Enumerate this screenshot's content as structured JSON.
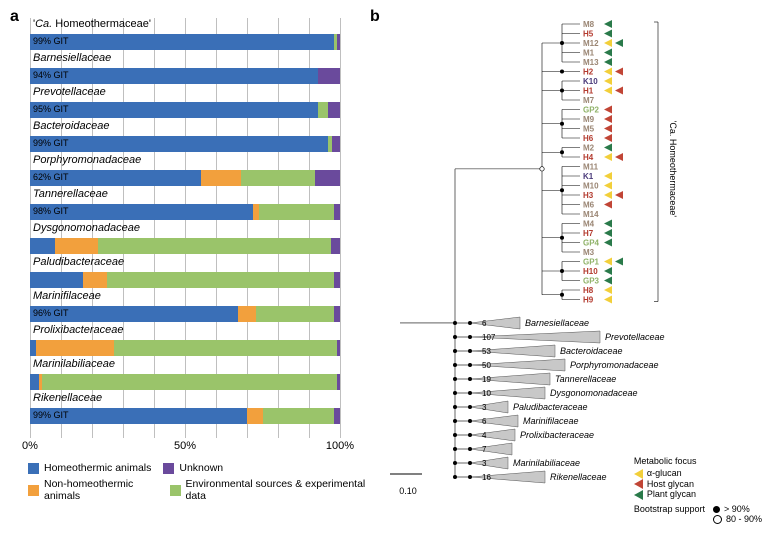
{
  "panelA": {
    "label": "a",
    "xticks": [
      "0%",
      "50%",
      "100%"
    ],
    "grid_positions_pct": [
      0,
      10,
      20,
      30,
      40,
      50,
      60,
      70,
      80,
      90,
      100
    ],
    "families": [
      {
        "name": "'Ca. Homeothermaceae'",
        "git": "99% GIT",
        "segs": [
          {
            "k": "homeo",
            "v": 98
          },
          {
            "k": "env",
            "v": 1
          },
          {
            "k": "unk",
            "v": 1
          }
        ],
        "quoted": true
      },
      {
        "name": "Barnesiellaceae",
        "git": "94% GIT",
        "segs": [
          {
            "k": "homeo",
            "v": 93
          },
          {
            "k": "unk",
            "v": 7
          }
        ]
      },
      {
        "name": "Prevotellaceae",
        "git": "95% GIT",
        "segs": [
          {
            "k": "homeo",
            "v": 93
          },
          {
            "k": "env",
            "v": 3
          },
          {
            "k": "unk",
            "v": 4
          }
        ]
      },
      {
        "name": "Bacteroidaceae",
        "git": "99% GIT",
        "segs": [
          {
            "k": "homeo",
            "v": 96
          },
          {
            "k": "env",
            "v": 1.5
          },
          {
            "k": "unk",
            "v": 2.5
          }
        ]
      },
      {
        "name": "Porphyromonadaceae",
        "git": "62% GIT",
        "segs": [
          {
            "k": "homeo",
            "v": 55
          },
          {
            "k": "nonhomeo",
            "v": 13
          },
          {
            "k": "env",
            "v": 24
          },
          {
            "k": "unk",
            "v": 8
          }
        ]
      },
      {
        "name": "Tannerellaceae",
        "git": "98% GIT",
        "segs": [
          {
            "k": "homeo",
            "v": 72
          },
          {
            "k": "nonhomeo",
            "v": 2
          },
          {
            "k": "env",
            "v": 24
          },
          {
            "k": "unk",
            "v": 2
          }
        ]
      },
      {
        "name": "Dysgonomonadaceae",
        "git": "",
        "segs": [
          {
            "k": "homeo",
            "v": 8
          },
          {
            "k": "nonhomeo",
            "v": 14
          },
          {
            "k": "env",
            "v": 75
          },
          {
            "k": "unk",
            "v": 3
          }
        ]
      },
      {
        "name": "Paludibacteraceae",
        "git": "",
        "segs": [
          {
            "k": "homeo",
            "v": 17
          },
          {
            "k": "nonhomeo",
            "v": 8
          },
          {
            "k": "env",
            "v": 73
          },
          {
            "k": "unk",
            "v": 2
          }
        ]
      },
      {
        "name": "Marinifilaceae",
        "git": "96% GIT",
        "segs": [
          {
            "k": "homeo",
            "v": 67
          },
          {
            "k": "nonhomeo",
            "v": 6
          },
          {
            "k": "env",
            "v": 25
          },
          {
            "k": "unk",
            "v": 2
          }
        ]
      },
      {
        "name": "Prolixibacteraceae",
        "git": "",
        "segs": [
          {
            "k": "homeo",
            "v": 2
          },
          {
            "k": "nonhomeo",
            "v": 25
          },
          {
            "k": "env",
            "v": 72
          },
          {
            "k": "unk",
            "v": 1
          }
        ]
      },
      {
        "name": "Marinilabiliaceae",
        "git": "",
        "segs": [
          {
            "k": "homeo",
            "v": 3
          },
          {
            "k": "nonhomeo",
            "v": 1
          },
          {
            "k": "env",
            "v": 95
          },
          {
            "k": "unk",
            "v": 1
          }
        ]
      },
      {
        "name": "Rikenellaceae",
        "git": "99% GIT",
        "segs": [
          {
            "k": "homeo",
            "v": 70
          },
          {
            "k": "nonhomeo",
            "v": 5
          },
          {
            "k": "env",
            "v": 23
          },
          {
            "k": "unk",
            "v": 2
          }
        ]
      }
    ],
    "colors": {
      "homeo": "#3a6fb7",
      "nonhomeo": "#f2a03d",
      "env": "#9ac46a",
      "unk": "#6a4a9c"
    },
    "legend": [
      {
        "key": "homeo",
        "label": "Homeothermic animals"
      },
      {
        "key": "unk",
        "label": "Unknown"
      },
      {
        "key": "nonhomeo",
        "label": "Non-homeothermic animals"
      },
      {
        "key": "env",
        "label": "Environmental sources & experimental data"
      }
    ]
  },
  "panelB": {
    "label": "b",
    "clade_label": "'Ca. Homeothermaceae'",
    "scale": "0.10",
    "mag_colors": {
      "M": "#9a8573",
      "H": "#b33a2e",
      "K": "#4a3a7a",
      "GP": "#8fb267"
    },
    "glycan_colors": {
      "alpha": "#f2cf3a",
      "host": "#c14536",
      "plant": "#2a7a4a"
    },
    "mags": [
      {
        "id": "M8",
        "glycans": [
          "plant"
        ]
      },
      {
        "id": "H5",
        "glycans": [
          "plant"
        ]
      },
      {
        "id": "M12",
        "glycans": [
          "alpha",
          "plant"
        ]
      },
      {
        "id": "M1",
        "glycans": [
          "plant"
        ]
      },
      {
        "id": "M13",
        "glycans": [
          "plant"
        ]
      },
      {
        "id": "H2",
        "glycans": [
          "alpha",
          "host"
        ]
      },
      {
        "id": "K10",
        "glycans": [
          "alpha"
        ]
      },
      {
        "id": "H1",
        "glycans": [
          "alpha",
          "host"
        ]
      },
      {
        "id": "M7",
        "glycans": []
      },
      {
        "id": "GP2",
        "glycans": [
          "host"
        ]
      },
      {
        "id": "M9",
        "glycans": [
          "host"
        ]
      },
      {
        "id": "M5",
        "glycans": [
          "host"
        ]
      },
      {
        "id": "H6",
        "glycans": [
          "host"
        ]
      },
      {
        "id": "M2",
        "glycans": [
          "plant"
        ]
      },
      {
        "id": "H4",
        "glycans": [
          "alpha",
          "host"
        ]
      },
      {
        "id": "M11",
        "glycans": []
      },
      {
        "id": "K1",
        "glycans": [
          "alpha"
        ]
      },
      {
        "id": "M10",
        "glycans": [
          "alpha"
        ]
      },
      {
        "id": "H3",
        "glycans": [
          "alpha",
          "host"
        ]
      },
      {
        "id": "M6",
        "glycans": [
          "host"
        ]
      },
      {
        "id": "M14",
        "glycans": []
      },
      {
        "id": "M4",
        "glycans": [
          "plant"
        ]
      },
      {
        "id": "H7",
        "glycans": [
          "plant"
        ]
      },
      {
        "id": "GP4",
        "glycans": [
          "plant"
        ]
      },
      {
        "id": "M3",
        "glycans": []
      },
      {
        "id": "GP1",
        "glycans": [
          "alpha",
          "plant"
        ]
      },
      {
        "id": "H10",
        "glycans": [
          "plant"
        ]
      },
      {
        "id": "GP3",
        "glycans": [
          "plant"
        ]
      },
      {
        "id": "H8",
        "glycans": [
          "alpha"
        ]
      },
      {
        "id": "H9",
        "glycans": [
          "alpha"
        ]
      }
    ],
    "collapsed": [
      {
        "label": "Barnesiellaceae",
        "n": 6,
        "width": 50
      },
      {
        "label": "Prevotellaceae",
        "n": 107,
        "width": 130
      },
      {
        "label": "Bacteroidaceae",
        "n": 53,
        "width": 85
      },
      {
        "label": "Porphyromonadaceae",
        "n": 50,
        "width": 95
      },
      {
        "label": "Tannerellaceae",
        "n": 19,
        "width": 80
      },
      {
        "label": "Dysgonomonadaceae",
        "n": 10,
        "width": 75
      },
      {
        "label": "Paludibacteraceae",
        "n": 3,
        "width": 38
      },
      {
        "label": "Marinifilaceae",
        "n": 6,
        "width": 48
      },
      {
        "label": "Prolixibacteraceae",
        "n": 4,
        "width": 45
      },
      {
        "label": "Marinilabiliaceae",
        "n": 3,
        "width": 38
      },
      {
        "label": "Rikenellaceae",
        "n": 16,
        "width": 75
      },
      {
        "label": "",
        "n": 7,
        "width": 42
      }
    ],
    "legend_metabolic": {
      "title": "Metabolic focus",
      "items": [
        {
          "k": "alpha",
          "label": "α-glucan"
        },
        {
          "k": "host",
          "label": "Host glycan"
        },
        {
          "k": "plant",
          "label": "Plant glycan"
        }
      ]
    },
    "legend_bootstrap": {
      "title": "Bootstrap support",
      "items": [
        {
          "sym": "filled",
          "label": "> 90%"
        },
        {
          "sym": "open",
          "label": "80 - 90%"
        }
      ]
    }
  }
}
